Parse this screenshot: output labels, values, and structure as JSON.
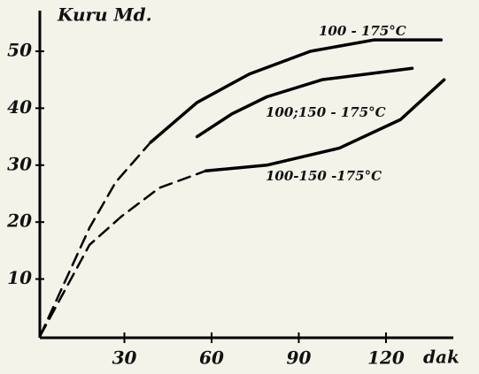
{
  "chart_data": {
    "type": "line",
    "y_label": "Kuru Md.",
    "x_label": "dak",
    "xlim": [
      0,
      152
    ],
    "ylim": [
      0,
      59
    ],
    "xticks": [
      30,
      60,
      90,
      120
    ],
    "yticks": [
      10,
      20,
      30,
      40,
      50
    ],
    "color": "#000000",
    "series": [
      {
        "name": "100 - 175°C",
        "x": [
          1,
          18,
          27,
          39,
          55,
          73,
          94,
          116,
          139
        ],
        "values": [
          0,
          19,
          27,
          34,
          41,
          46,
          50,
          52,
          52
        ],
        "dashed_to": 3
      },
      {
        "name": "100;150 - 175°C",
        "x": [
          55,
          67,
          79,
          98,
          129
        ],
        "values": [
          35,
          39,
          42,
          45,
          47
        ],
        "dashed_to": 0
      },
      {
        "name": "100-150 -175°C",
        "x": [
          1,
          18,
          29,
          42,
          58,
          79,
          104,
          125,
          140
        ],
        "values": [
          0,
          16,
          21,
          26,
          29,
          30,
          33,
          38,
          45
        ],
        "dashed_to": 4
      }
    ]
  }
}
